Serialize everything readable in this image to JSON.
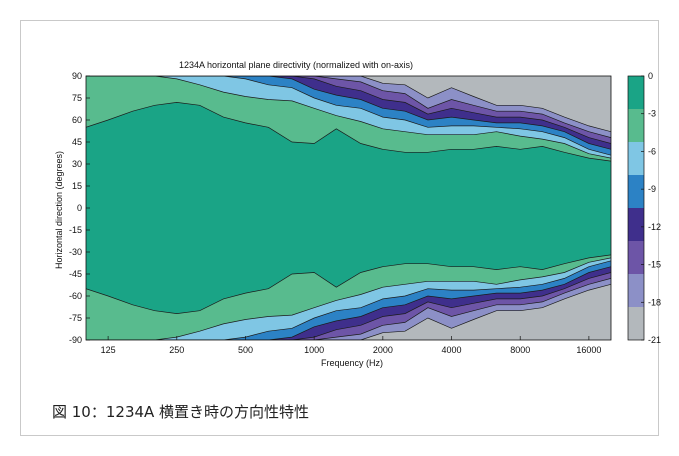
{
  "caption": "図 10：1234A 横置き時の方向性特性",
  "chart_data": {
    "type": "contour",
    "title": "1234A horizontal plane directivity (normalized with on-axis)",
    "xlabel": "Frequency (Hz)",
    "ylabel": "Horizontal direction (degrees)",
    "x_scale": "log",
    "xlim": [
      100,
      20000
    ],
    "ylim": [
      -90,
      90
    ],
    "x_ticks": [
      125,
      250,
      500,
      1000,
      2000,
      4000,
      8000,
      16000
    ],
    "x_tick_labels": [
      "125",
      "250",
      "500",
      "1000",
      "2000",
      "4000",
      "8000",
      "16000"
    ],
    "y_ticks": [
      90,
      75,
      60,
      45,
      30,
      15,
      0,
      -15,
      -30,
      -45,
      -60,
      -75,
      -90
    ],
    "y_tick_labels": [
      "90",
      "75",
      "60",
      "45",
      "30",
      "15",
      "0",
      "-15",
      "-30",
      "-45",
      "-60",
      "-75",
      "-90"
    ],
    "colorbar": {
      "levels": [
        0,
        -3,
        -6,
        -9,
        -12,
        -15,
        -18,
        -21
      ],
      "labels": [
        "0",
        "-3",
        "-6",
        "-9",
        "-12",
        "-15",
        "-18",
        "-21"
      ],
      "colors": [
        "#1aa486",
        "#58bb8e",
        "#7fc6e4",
        "#2c82c5",
        "#3f2f8c",
        "#6d55a7",
        "#8c90c7",
        "#b3b8bc"
      ]
    },
    "frequencies": [
      100,
      125,
      160,
      200,
      250,
      315,
      400,
      500,
      630,
      800,
      1000,
      1250,
      1600,
      2000,
      2500,
      3150,
      4000,
      5000,
      6300,
      8000,
      10000,
      12500,
      16000,
      20000
    ],
    "contours_deg": [
      {
        "level": -3,
        "angle": [
          55,
          60,
          66,
          70,
          72,
          70,
          62,
          58,
          55,
          45,
          44,
          54,
          44,
          40,
          38,
          38,
          40,
          40,
          42,
          40,
          42,
          38,
          34,
          32
        ]
      },
      {
        "level": -6,
        "angle": [
          90,
          90,
          90,
          90,
          88,
          84,
          79,
          76,
          74,
          73,
          68,
          63,
          59,
          54,
          52,
          50,
          50,
          50,
          52,
          49,
          47,
          44,
          37,
          34
        ]
      },
      {
        "level": -9,
        "angle": [
          90,
          90,
          90,
          90,
          90,
          90,
          90,
          88,
          84,
          82,
          75,
          70,
          68,
          62,
          60,
          55,
          56,
          56,
          55,
          54,
          52,
          48,
          40,
          36
        ]
      },
      {
        "level": -12,
        "angle": [
          90,
          90,
          90,
          90,
          90,
          90,
          90,
          90,
          90,
          88,
          81,
          77,
          74,
          68,
          66,
          60,
          62,
          60,
          58,
          58,
          56,
          52,
          44,
          40
        ]
      },
      {
        "level": -15,
        "angle": [
          90,
          90,
          90,
          90,
          90,
          90,
          90,
          90,
          90,
          90,
          88,
          83,
          80,
          74,
          72,
          64,
          68,
          65,
          62,
          62,
          60,
          55,
          48,
          44
        ]
      },
      {
        "level": -18,
        "angle": [
          90,
          90,
          90,
          90,
          90,
          90,
          90,
          90,
          90,
          90,
          90,
          88,
          86,
          80,
          78,
          68,
          74,
          70,
          66,
          66,
          64,
          58,
          52,
          48
        ]
      },
      {
        "level": -21,
        "angle": [
          90,
          90,
          90,
          90,
          90,
          90,
          90,
          90,
          90,
          90,
          90,
          90,
          90,
          85,
          84,
          75,
          82,
          76,
          70,
          70,
          68,
          62,
          56,
          52
        ]
      }
    ]
  }
}
